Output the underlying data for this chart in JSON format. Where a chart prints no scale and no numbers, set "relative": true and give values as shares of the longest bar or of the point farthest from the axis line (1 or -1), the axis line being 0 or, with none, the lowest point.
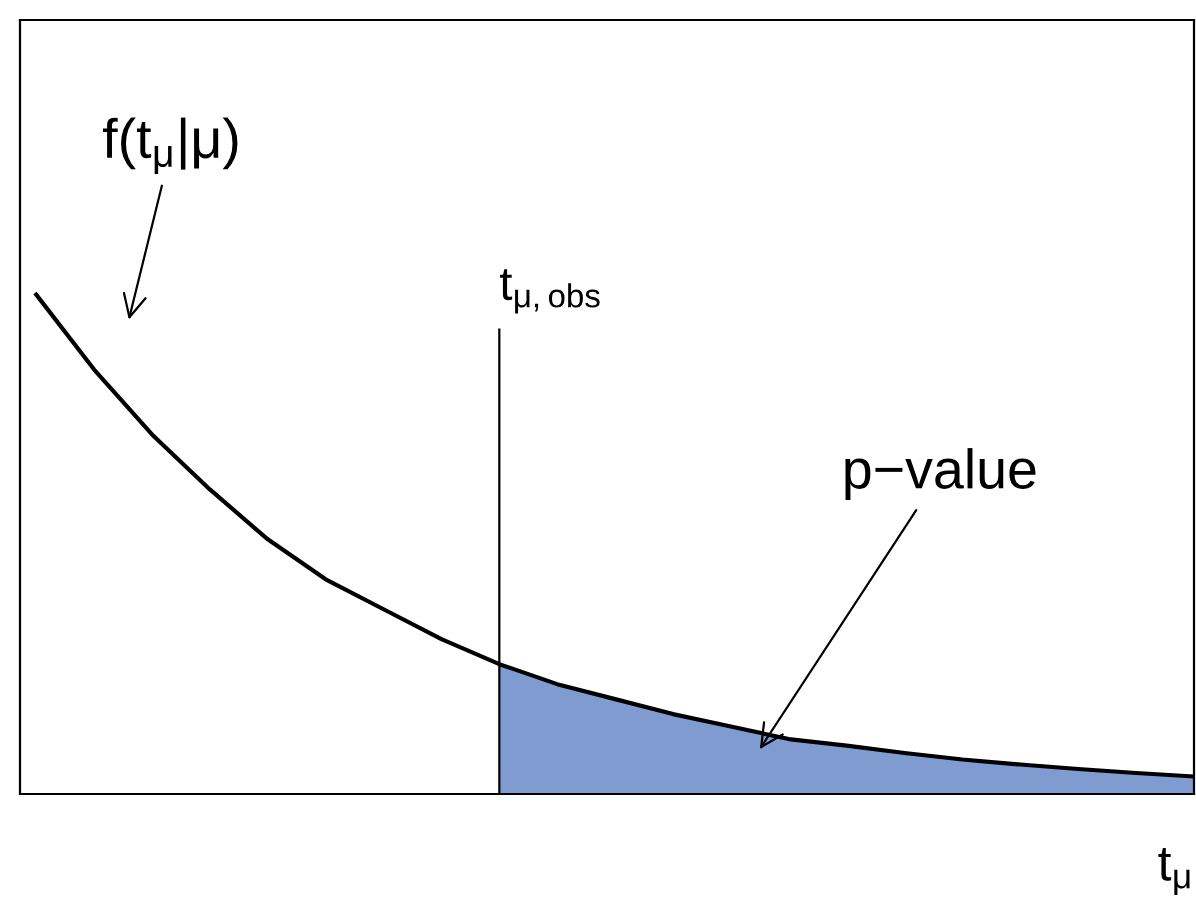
{
  "chart_data": {
    "type": "line",
    "relative": true,
    "xlabel": "t$_{μ}$",
    "categories": [
      null,
      null,
      null,
      null,
      null,
      null,
      null,
      null,
      null,
      null,
      null,
      null,
      null,
      null,
      null,
      null,
      null,
      null,
      null,
      null,
      null
    ],
    "series": [
      {
        "color": "#000000",
        "values": [
          1.0,
          0.85,
          0.72,
          0.61,
          0.51,
          0.43,
          0.37,
          0.31,
          0.26,
          0.22,
          0.19,
          0.16,
          0.135,
          0.11,
          0.097,
          0.082,
          0.069,
          0.059,
          0.05,
          0.042,
          0.035
        ]
      },
      {
        "type": "area",
        "color": "#7f9bd0",
        "values": [
          null,
          null,
          null,
          null,
          null,
          null,
          null,
          null,
          0.26,
          0.22,
          0.19,
          0.16,
          0.135,
          0.11,
          0.097,
          0.082,
          0.069,
          0.059,
          0.05,
          0.042,
          0.035
        ]
      }
    ],
    "annotations": [
      "f(t$_{μ}$|μ)",
      "p−value",
      "t$_{μ,obs}$"
    ]
  }
}
